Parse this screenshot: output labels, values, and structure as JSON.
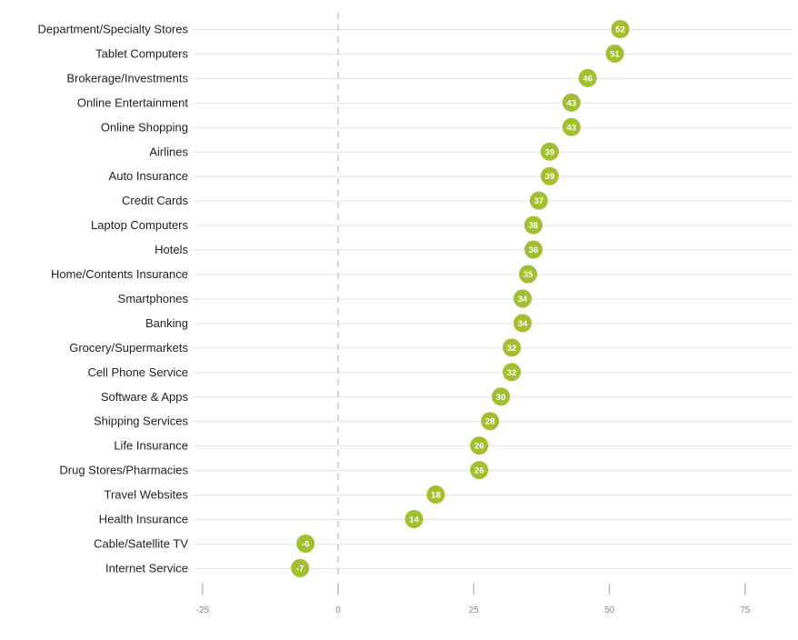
{
  "chart_data": {
    "type": "scatter",
    "categories": [
      "Department/Specialty Stores",
      "Tablet Computers",
      "Brokerage/Investments",
      "Online Entertainment",
      "Online Shopping",
      "Airlines",
      "Auto Insurance",
      "Credit Cards",
      "Laptop Computers",
      "Hotels",
      "Home/Contents Insurance",
      "Smartphones",
      "Banking",
      "Grocery/Supermarkets",
      "Cell Phone Service",
      "Software & Apps",
      "Shipping Services",
      "Life Insurance",
      "Drug Stores/Pharmacies",
      "Travel Websites",
      "Health Insurance",
      "Cable/Satellite TV",
      "Internet Service"
    ],
    "values": [
      52,
      51,
      46,
      43,
      43,
      39,
      39,
      37,
      36,
      36,
      35,
      34,
      34,
      32,
      32,
      30,
      28,
      26,
      26,
      18,
      14,
      -6,
      -7
    ],
    "value_labels": [
      "52",
      "51",
      "46",
      "43",
      "43",
      "39",
      "39",
      "37",
      "36",
      "36",
      "35",
      "34",
      "34",
      "32",
      "32",
      "30",
      "28",
      "26",
      "26",
      "18",
      "14",
      "-6",
      "-7"
    ],
    "xlim": [
      -25,
      80
    ],
    "x_ticks": [
      -25,
      0,
      25,
      50,
      75
    ],
    "x_tick_labels": [
      "-25",
      "0",
      "25",
      "50",
      "75"
    ],
    "zero_line": "dashed",
    "grid": true,
    "title": "",
    "xlabel": "",
    "ylabel": "",
    "colors": {
      "marker": "#a2bf2f",
      "marker_text": "#ffffff",
      "gridline": "#e3e3e3",
      "zero_line": "#c8c8c8",
      "axis_tick": "#bbbbbb",
      "tick_label": "#8a8a8a",
      "category_label": "#222222"
    }
  }
}
